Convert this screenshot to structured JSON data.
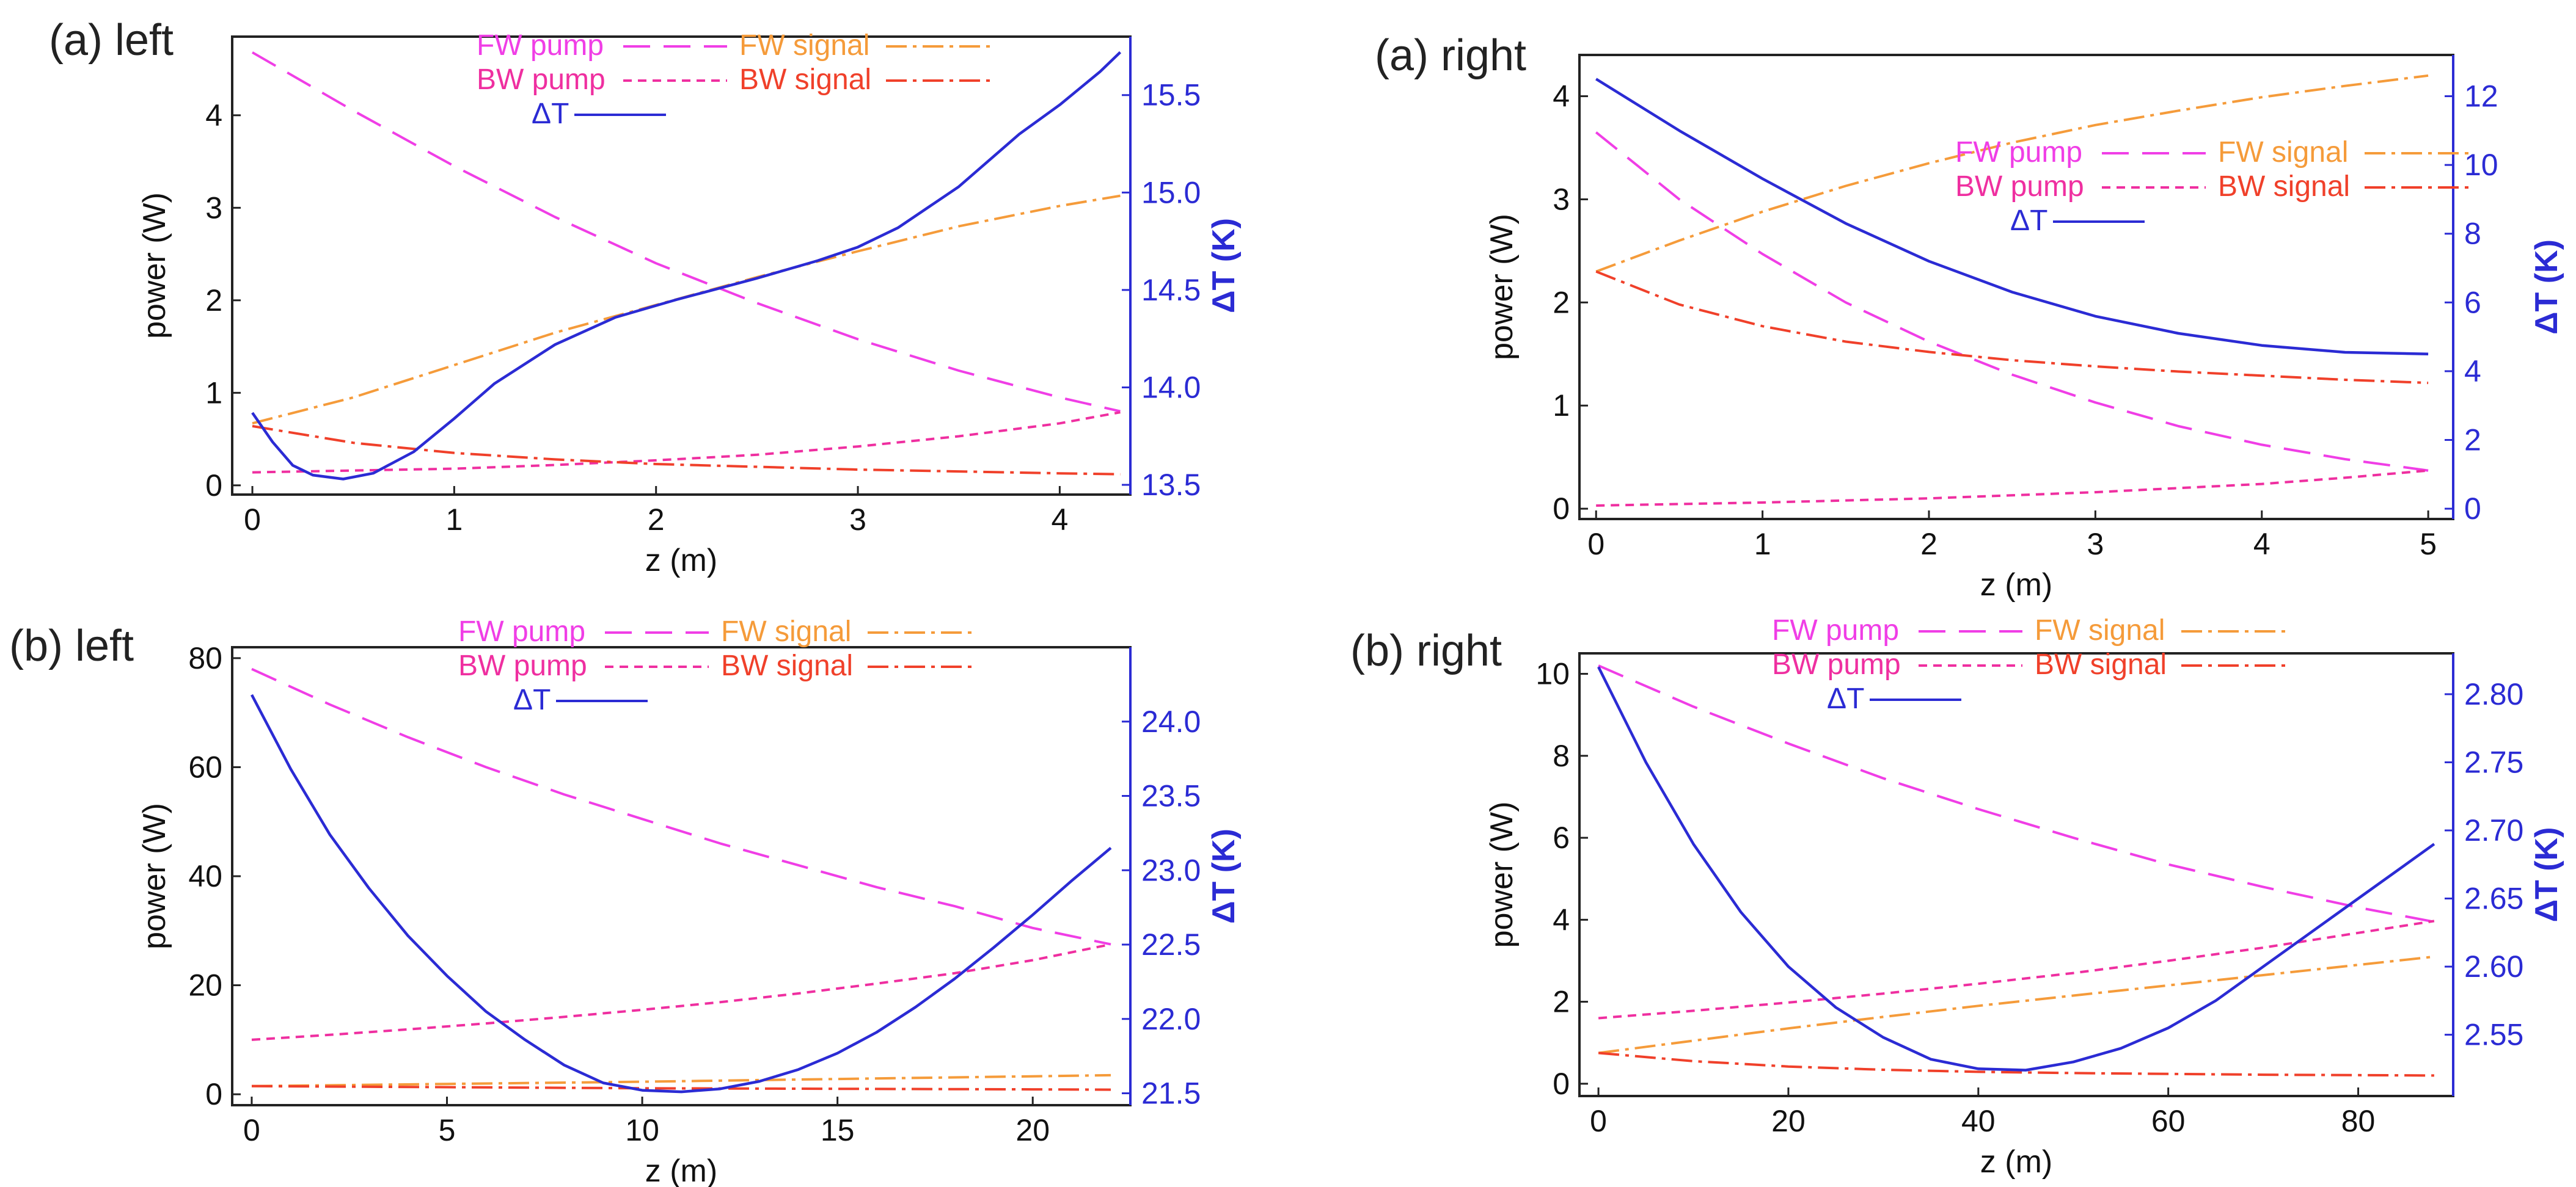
{
  "colors": {
    "fw_pump": "#f03ee6",
    "bw_pump": "#ef2fa0",
    "fw_signal": "#f59b3a",
    "bw_signal": "#f0402a",
    "dT": "#2b2bd4",
    "axis": "#222222"
  },
  "chart_data": [
    {
      "id": "a_left",
      "panel_label": "(a) left",
      "type": "line",
      "xlabel": "z (m)",
      "ylabel": "power (W)",
      "y2label": "ΔT (K)",
      "xlim": [
        -0.1,
        4.35
      ],
      "ylim": [
        -0.1,
        4.85
      ],
      "y2lim": [
        13.45,
        15.8
      ],
      "xticks": [
        0,
        1,
        2,
        3,
        4
      ],
      "yticks": [
        0,
        1,
        2,
        3,
        4
      ],
      "y2ticks": [
        13.5,
        14.0,
        14.5,
        15.0,
        15.5
      ],
      "y2tick_labels": [
        "13.5",
        "14.0",
        "14.5",
        "15.0",
        "15.5"
      ],
      "legend_position": "top-center",
      "series": [
        {
          "name": "FW pump",
          "key": "fw_pump",
          "axis": "left",
          "dash": "long",
          "x": [
            0,
            0.5,
            1,
            1.5,
            2,
            2.5,
            3,
            3.5,
            4,
            4.3
          ],
          "y": [
            4.68,
            4.05,
            3.45,
            2.9,
            2.4,
            1.97,
            1.58,
            1.24,
            0.95,
            0.8
          ]
        },
        {
          "name": "BW pump",
          "key": "bw_pump",
          "axis": "left",
          "dash": "short",
          "x": [
            0,
            0.5,
            1,
            1.5,
            2,
            2.5,
            3,
            3.5,
            4,
            4.3
          ],
          "y": [
            0.14,
            0.16,
            0.18,
            0.22,
            0.27,
            0.33,
            0.42,
            0.53,
            0.67,
            0.79
          ]
        },
        {
          "name": "FW signal",
          "key": "fw_signal",
          "axis": "left",
          "dash": "dashdot",
          "x": [
            0,
            0.5,
            1,
            1.5,
            2,
            2.5,
            3,
            3.5,
            4,
            4.3
          ],
          "y": [
            0.67,
            0.95,
            1.3,
            1.65,
            1.95,
            2.25,
            2.53,
            2.8,
            3.02,
            3.13
          ]
        },
        {
          "name": "BW signal",
          "key": "bw_signal",
          "axis": "left",
          "dash": "dashdot",
          "x": [
            0,
            0.5,
            1,
            1.5,
            2,
            2.5,
            3,
            3.5,
            4,
            4.3
          ],
          "y": [
            0.64,
            0.46,
            0.35,
            0.28,
            0.23,
            0.2,
            0.17,
            0.15,
            0.13,
            0.12
          ]
        },
        {
          "name": "ΔT",
          "key": "dT",
          "axis": "right",
          "dash": "solid",
          "x": [
            0,
            0.1,
            0.2,
            0.3,
            0.45,
            0.6,
            0.8,
            1.0,
            1.2,
            1.5,
            1.8,
            2.1,
            2.5,
            2.8,
            3.0,
            3.2,
            3.5,
            3.8,
            4.0,
            4.2,
            4.3
          ],
          "y": [
            13.87,
            13.72,
            13.6,
            13.55,
            13.53,
            13.56,
            13.67,
            13.84,
            14.02,
            14.22,
            14.36,
            14.45,
            14.56,
            14.65,
            14.72,
            14.82,
            15.03,
            15.3,
            15.45,
            15.62,
            15.72
          ]
        }
      ]
    },
    {
      "id": "a_right",
      "panel_label": "(a) right",
      "type": "line",
      "xlabel": "z (m)",
      "ylabel": "power (W)",
      "y2label": "ΔT (K)",
      "xlim": [
        -0.1,
        5.15
      ],
      "ylim": [
        -0.1,
        4.4
      ],
      "y2lim": [
        -0.3,
        13.2
      ],
      "xticks": [
        0,
        1,
        2,
        3,
        4,
        5
      ],
      "yticks": [
        0,
        1,
        2,
        3,
        4
      ],
      "y2ticks": [
        0,
        2,
        4,
        6,
        8,
        10,
        12
      ],
      "y2tick_labels": [
        "0",
        "2",
        "4",
        "6",
        "8",
        "10",
        "12"
      ],
      "legend_position": "center-right",
      "series": [
        {
          "name": "FW pump",
          "key": "fw_pump",
          "axis": "left",
          "dash": "long",
          "x": [
            0,
            0.5,
            1,
            1.5,
            2,
            2.5,
            3,
            3.5,
            4,
            4.5,
            5
          ],
          "y": [
            3.65,
            3.0,
            2.47,
            2.0,
            1.62,
            1.3,
            1.03,
            0.8,
            0.62,
            0.48,
            0.37
          ]
        },
        {
          "name": "BW pump",
          "key": "bw_pump",
          "axis": "left",
          "dash": "short",
          "x": [
            0,
            1,
            2,
            3,
            4,
            4.5,
            5
          ],
          "y": [
            0.03,
            0.06,
            0.1,
            0.16,
            0.24,
            0.3,
            0.37
          ]
        },
        {
          "name": "FW signal",
          "key": "fw_signal",
          "axis": "left",
          "dash": "dashdot",
          "x": [
            0,
            0.5,
            1,
            1.5,
            2,
            2.5,
            3,
            3.5,
            4,
            4.5,
            5
          ],
          "y": [
            2.3,
            2.6,
            2.88,
            3.13,
            3.35,
            3.55,
            3.72,
            3.86,
            3.99,
            4.1,
            4.2
          ]
        },
        {
          "name": "BW signal",
          "key": "bw_signal",
          "axis": "left",
          "dash": "dashdot",
          "x": [
            0,
            0.5,
            1,
            1.5,
            2,
            2.5,
            3,
            3.5,
            4,
            4.5,
            5
          ],
          "y": [
            2.3,
            1.98,
            1.77,
            1.62,
            1.52,
            1.44,
            1.38,
            1.33,
            1.29,
            1.25,
            1.22
          ]
        },
        {
          "name": "ΔT",
          "key": "dT",
          "axis": "right",
          "dash": "solid",
          "x": [
            0,
            0.5,
            1,
            1.5,
            2,
            2.5,
            3,
            3.5,
            4,
            4.5,
            5
          ],
          "y": [
            12.5,
            11.0,
            9.6,
            8.3,
            7.2,
            6.3,
            5.6,
            5.1,
            4.75,
            4.55,
            4.5
          ]
        }
      ]
    },
    {
      "id": "b_left",
      "panel_label": "(b) left",
      "type": "line",
      "xlabel": "z (m)",
      "ylabel": "power (W)",
      "y2label": "ΔT (K)",
      "xlim": [
        -0.5,
        22.5
      ],
      "ylim": [
        -2,
        82
      ],
      "y2lim": [
        21.42,
        24.5
      ],
      "xticks": [
        0,
        5,
        10,
        15,
        20
      ],
      "yticks": [
        0,
        20,
        40,
        60,
        80
      ],
      "y2ticks": [
        21.5,
        22.0,
        22.5,
        23.0,
        23.5,
        24.0
      ],
      "y2tick_labels": [
        "21.5",
        "22.0",
        "22.5",
        "23.0",
        "23.5",
        "24.0"
      ],
      "legend_position": "top-center",
      "series": [
        {
          "name": "FW pump",
          "key": "fw_pump",
          "axis": "left",
          "dash": "long",
          "x": [
            0,
            2,
            4,
            6,
            8,
            10,
            12,
            14,
            16,
            18,
            20,
            22
          ],
          "y": [
            78,
            71.5,
            65.5,
            60,
            55,
            50.5,
            46,
            42,
            38,
            34.5,
            30.5,
            27.5
          ]
        },
        {
          "name": "BW pump",
          "key": "bw_pump",
          "axis": "left",
          "dash": "short",
          "x": [
            0,
            2,
            4,
            6,
            8,
            10,
            12,
            14,
            16,
            18,
            20,
            22
          ],
          "y": [
            10,
            10.9,
            11.9,
            13,
            14.2,
            15.5,
            16.9,
            18.5,
            20.3,
            22.2,
            24.6,
            27.5
          ]
        },
        {
          "name": "FW signal",
          "key": "fw_signal",
          "axis": "left",
          "dash": "dashdot",
          "x": [
            0,
            5,
            10,
            15,
            20,
            22
          ],
          "y": [
            1.5,
            1.9,
            2.3,
            2.8,
            3.3,
            3.5
          ]
        },
        {
          "name": "BW signal",
          "key": "bw_signal",
          "axis": "left",
          "dash": "dashdot",
          "x": [
            0,
            5,
            10,
            15,
            20,
            22
          ],
          "y": [
            1.5,
            1.3,
            1.1,
            1.0,
            0.9,
            0.85
          ]
        },
        {
          "name": "ΔT",
          "key": "dT",
          "axis": "right",
          "dash": "solid",
          "x": [
            0,
            1,
            2,
            3,
            4,
            5,
            6,
            7,
            8,
            9,
            10,
            11,
            12,
            13,
            14,
            15,
            16,
            17,
            18,
            19,
            20,
            21,
            22
          ],
          "y": [
            24.18,
            23.68,
            23.24,
            22.88,
            22.56,
            22.29,
            22.05,
            21.86,
            21.69,
            21.57,
            21.52,
            21.51,
            21.53,
            21.58,
            21.66,
            21.77,
            21.91,
            22.08,
            22.27,
            22.48,
            22.7,
            22.93,
            23.15
          ]
        }
      ]
    },
    {
      "id": "b_right",
      "panel_label": "(b) right",
      "type": "line",
      "xlabel": "z (m)",
      "ylabel": "power (W)",
      "y2label": "ΔT (K)",
      "xlim": [
        -2,
        90
      ],
      "ylim": [
        -0.3,
        10.5
      ],
      "y2lim": [
        2.505,
        2.83
      ],
      "xticks": [
        0,
        20,
        40,
        60,
        80
      ],
      "yticks": [
        0,
        2,
        4,
        6,
        8,
        10
      ],
      "y2ticks": [
        2.55,
        2.6,
        2.65,
        2.7,
        2.75,
        2.8
      ],
      "y2tick_labels": [
        "2.55",
        "2.60",
        "2.65",
        "2.70",
        "2.75",
        "2.80"
      ],
      "legend_position": "top-center",
      "series": [
        {
          "name": "FW pump",
          "key": "fw_pump",
          "axis": "left",
          "dash": "long",
          "x": [
            0,
            10,
            20,
            30,
            40,
            50,
            60,
            70,
            80,
            88
          ],
          "y": [
            10.2,
            9.2,
            8.3,
            7.45,
            6.7,
            6.0,
            5.35,
            4.8,
            4.3,
            3.95
          ]
        },
        {
          "name": "BW pump",
          "key": "bw_pump",
          "axis": "left",
          "dash": "short",
          "x": [
            0,
            10,
            20,
            30,
            40,
            50,
            60,
            70,
            80,
            88
          ],
          "y": [
            1.6,
            1.78,
            1.98,
            2.2,
            2.44,
            2.7,
            3.0,
            3.32,
            3.68,
            3.97
          ]
        },
        {
          "name": "FW signal",
          "key": "fw_signal",
          "axis": "left",
          "dash": "dashdot",
          "x": [
            0,
            10,
            20,
            30,
            40,
            50,
            60,
            70,
            80,
            88
          ],
          "y": [
            0.75,
            1.05,
            1.35,
            1.63,
            1.9,
            2.15,
            2.4,
            2.65,
            2.9,
            3.1
          ]
        },
        {
          "name": "BW signal",
          "key": "bw_signal",
          "axis": "left",
          "dash": "dashdot",
          "x": [
            0,
            10,
            20,
            30,
            40,
            50,
            60,
            70,
            80,
            88
          ],
          "y": [
            0.75,
            0.55,
            0.42,
            0.34,
            0.29,
            0.26,
            0.24,
            0.22,
            0.21,
            0.2
          ]
        },
        {
          "name": "ΔT",
          "key": "dT",
          "axis": "right",
          "dash": "solid",
          "x": [
            0,
            5,
            10,
            15,
            20,
            25,
            30,
            35,
            40,
            45,
            50,
            55,
            60,
            65,
            70,
            75,
            80,
            85,
            88
          ],
          "y": [
            2.82,
            2.75,
            2.69,
            2.64,
            2.6,
            2.57,
            2.548,
            2.532,
            2.525,
            2.524,
            2.53,
            2.54,
            2.555,
            2.575,
            2.6,
            2.625,
            2.65,
            2.675,
            2.69
          ]
        }
      ]
    }
  ]
}
